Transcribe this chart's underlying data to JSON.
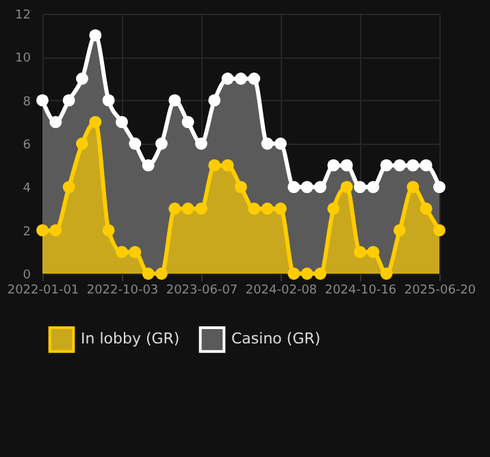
{
  "chart_data": {
    "type": "area",
    "categories": [
      "2022-01-01",
      null,
      null,
      null,
      null,
      null,
      "2022-10-03",
      null,
      null,
      null,
      null,
      null,
      "2023-06-07",
      null,
      null,
      null,
      null,
      null,
      "2024-02-08",
      null,
      null,
      null,
      null,
      null,
      "2024-10-16",
      null,
      null,
      null,
      null,
      null,
      "2025-06-20"
    ],
    "series": [
      {
        "name": "Casino (GR)",
        "color": "#ffffff",
        "values": [
          8,
          7,
          8,
          9,
          11,
          8,
          7,
          6,
          5,
          6,
          8,
          7,
          6,
          8,
          9,
          9,
          9,
          6,
          6,
          4,
          4,
          4,
          5,
          5,
          4,
          4,
          5,
          5,
          5,
          5,
          4
        ]
      },
      {
        "name": "In lobby (GR)",
        "color": "#ffcc00",
        "values": [
          2,
          2,
          4,
          6,
          7,
          2,
          1,
          1,
          0,
          0,
          3,
          3,
          3,
          5,
          5,
          4,
          3,
          3,
          3,
          0,
          0,
          0,
          3,
          4,
          1,
          1,
          0,
          2,
          4,
          3,
          2
        ]
      }
    ],
    "ylim": [
      0,
      12
    ],
    "yticks": [
      0,
      2,
      4,
      6,
      8,
      10,
      12
    ],
    "grid": true,
    "legend": "bottom",
    "marker": "circle"
  }
}
